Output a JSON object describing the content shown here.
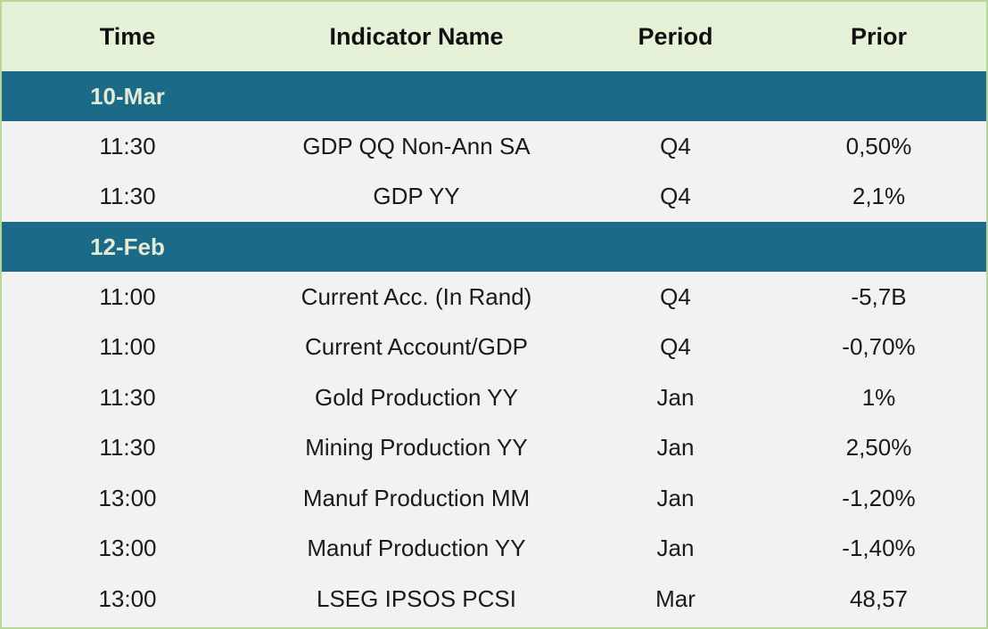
{
  "table": {
    "headers": {
      "time": "Time",
      "name": "Indicator Name",
      "period": "Period",
      "prior": "Prior"
    },
    "groups": [
      {
        "date": "10-Mar",
        "rows": [
          {
            "time": "11:30",
            "name": "GDP QQ Non-Ann SA",
            "period": "Q4",
            "prior": "0,50%"
          },
          {
            "time": "11:30",
            "name": "GDP YY",
            "period": "Q4",
            "prior": "2,1%"
          }
        ]
      },
      {
        "date": "12-Feb",
        "rows": [
          {
            "time": "11:00",
            "name": "Current Acc. (In Rand)",
            "period": "Q4",
            "prior": "-5,7B"
          },
          {
            "time": "11:00",
            "name": "Current Account/GDP",
            "period": "Q4",
            "prior": "-0,70%"
          },
          {
            "time": "11:30",
            "name": "Gold Production YY",
            "period": "Jan",
            "prior": "1%"
          },
          {
            "time": "11:30",
            "name": "Mining Production YY",
            "period": "Jan",
            "prior": "2,50%"
          },
          {
            "time": "13:00",
            "name": "Manuf Production MM",
            "period": "Jan",
            "prior": "-1,20%"
          },
          {
            "time": "13:00",
            "name": "Manuf Production YY",
            "period": "Jan",
            "prior": "-1,40%"
          },
          {
            "time": "13:00",
            "name": "LSEG IPSOS PCSI",
            "period": "Mar",
            "prior": "48,57"
          }
        ]
      }
    ]
  },
  "colors": {
    "header_bg": "#e6f2d8",
    "date_band_bg": "#1b6a88",
    "date_band_text": "#e3ead6",
    "body_bg": "#f2f2f2",
    "border": "#b8d89a"
  }
}
